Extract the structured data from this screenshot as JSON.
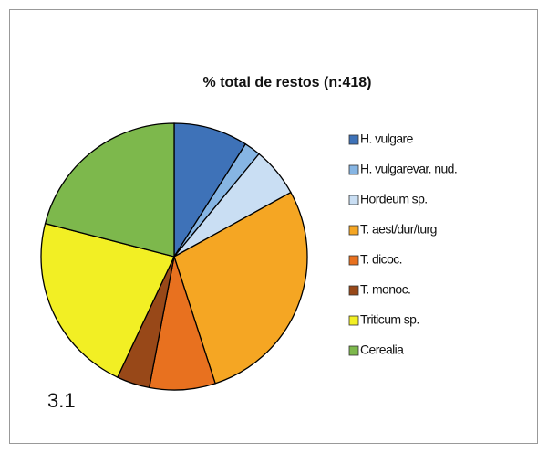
{
  "chart_data": {
    "type": "pie",
    "title": "% total de restos (n:418)",
    "annotation": "3.1",
    "categories": [
      "H. vulgare",
      "H. vulgarevar. nud.",
      "Hordeum sp.",
      "T. aest/dur/turg",
      "T. dicoc.",
      "T. monoc.",
      "Triticum sp.",
      "Cerealia"
    ],
    "values": [
      9,
      2,
      6,
      28,
      8,
      4,
      22,
      21
    ],
    "colors": [
      "#3e72b8",
      "#86b5e3",
      "#c9def3",
      "#f5a623",
      "#e8711f",
      "#984818",
      "#f2ef24",
      "#7db84c"
    ],
    "legend": "right"
  }
}
